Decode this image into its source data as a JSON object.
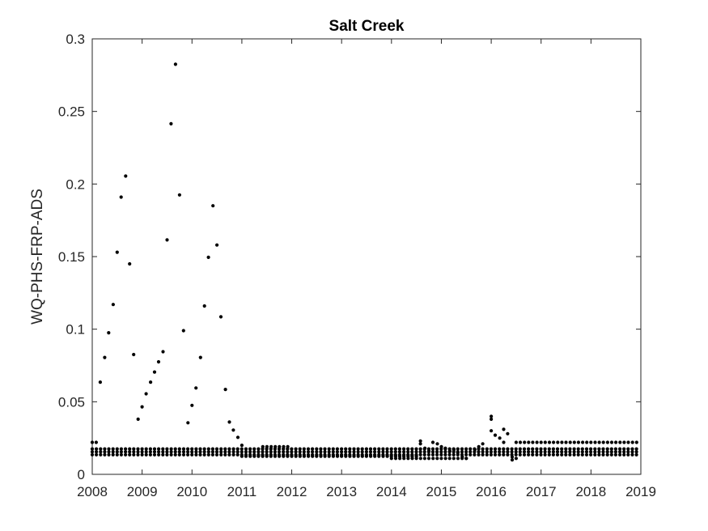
{
  "chart_data": {
    "type": "scatter",
    "title": "Salt Creek",
    "xlabel": "",
    "ylabel": "WQ-PHS-FRP-ADS",
    "xlim": [
      2008,
      2019
    ],
    "ylim": [
      0,
      0.3
    ],
    "xticks": [
      "2008",
      "2009",
      "2010",
      "2011",
      "2012",
      "2013",
      "2014",
      "2015",
      "2016",
      "2017",
      "2018",
      "2019"
    ],
    "yticks": [
      "0",
      "0.05",
      "0.1",
      "0.15",
      "0.2",
      "0.25",
      "0.3"
    ],
    "grid": false,
    "marker_color": "#000000",
    "series": [
      {
        "name": "",
        "points": [
          [
            2008.0,
            0.022
          ],
          [
            2008.08,
            0.022
          ],
          [
            2008.16,
            0.0635
          ],
          [
            2008.25,
            0.0805
          ],
          [
            2008.33,
            0.0975
          ],
          [
            2008.42,
            0.117
          ],
          [
            2008.5,
            0.153
          ],
          [
            2008.58,
            0.191
          ],
          [
            2008.67,
            0.2055
          ],
          [
            2008.75,
            0.145
          ],
          [
            2008.83,
            0.0825
          ],
          [
            2008.92,
            0.038
          ],
          [
            2009.0,
            0.0465
          ],
          [
            2009.08,
            0.0555
          ],
          [
            2009.17,
            0.0635
          ],
          [
            2009.25,
            0.0705
          ],
          [
            2009.33,
            0.0775
          ],
          [
            2009.42,
            0.0845
          ],
          [
            2009.5,
            0.1615
          ],
          [
            2009.58,
            0.2415
          ],
          [
            2009.67,
            0.2825
          ],
          [
            2009.75,
            0.1925
          ],
          [
            2009.83,
            0.099
          ],
          [
            2009.92,
            0.0355
          ],
          [
            2010.0,
            0.0475
          ],
          [
            2010.08,
            0.0595
          ],
          [
            2010.17,
            0.0805
          ],
          [
            2010.25,
            0.116
          ],
          [
            2010.33,
            0.1495
          ],
          [
            2010.42,
            0.185
          ],
          [
            2010.5,
            0.158
          ],
          [
            2010.58,
            0.1085
          ],
          [
            2010.67,
            0.0585
          ],
          [
            2010.75,
            0.036
          ],
          [
            2010.83,
            0.0305
          ],
          [
            2010.92,
            0.0255
          ],
          [
            2011.0,
            0.02
          ],
          [
            2014.58,
            0.023
          ],
          [
            2014.58,
            0.021
          ],
          [
            2014.67,
            0.018
          ],
          [
            2014.75,
            0.016
          ],
          [
            2014.83,
            0.022
          ],
          [
            2014.92,
            0.021
          ],
          [
            2015.0,
            0.019
          ],
          [
            2015.08,
            0.018
          ],
          [
            2015.17,
            0.016
          ],
          [
            2015.25,
            0.017
          ],
          [
            2015.33,
            0.015
          ],
          [
            2015.42,
            0.012
          ],
          [
            2015.5,
            0.011
          ],
          [
            2015.67,
            0.017
          ],
          [
            2015.75,
            0.019
          ],
          [
            2015.83,
            0.021
          ],
          [
            2016.0,
            0.04
          ],
          [
            2016.0,
            0.038
          ],
          [
            2016.0,
            0.03
          ],
          [
            2016.08,
            0.027
          ],
          [
            2016.17,
            0.025
          ],
          [
            2016.25,
            0.022
          ],
          [
            2016.25,
            0.031
          ],
          [
            2016.33,
            0.028
          ],
          [
            2016.42,
            0.012
          ],
          [
            2016.42,
            0.01
          ],
          [
            2016.5,
            0.011
          ]
        ],
        "bands": [
          {
            "x_start": 2008.0,
            "x_end": 2018.92,
            "step": 0.0833,
            "y": 0.0135
          },
          {
            "x_start": 2008.0,
            "x_end": 2018.92,
            "step": 0.0833,
            "y": 0.0155
          },
          {
            "x_start": 2008.0,
            "x_end": 2018.92,
            "step": 0.0833,
            "y": 0.0175
          },
          {
            "x_start": 2011.0,
            "x_end": 2014.5,
            "step": 0.0833,
            "y": 0.0125
          },
          {
            "x_start": 2011.42,
            "x_end": 2012.0,
            "step": 0.0833,
            "y": 0.019
          },
          {
            "x_start": 2014.0,
            "x_end": 2015.5,
            "step": 0.0833,
            "y": 0.011
          },
          {
            "x_start": 2016.5,
            "x_end": 2018.92,
            "step": 0.0833,
            "y": 0.022
          }
        ]
      }
    ]
  }
}
